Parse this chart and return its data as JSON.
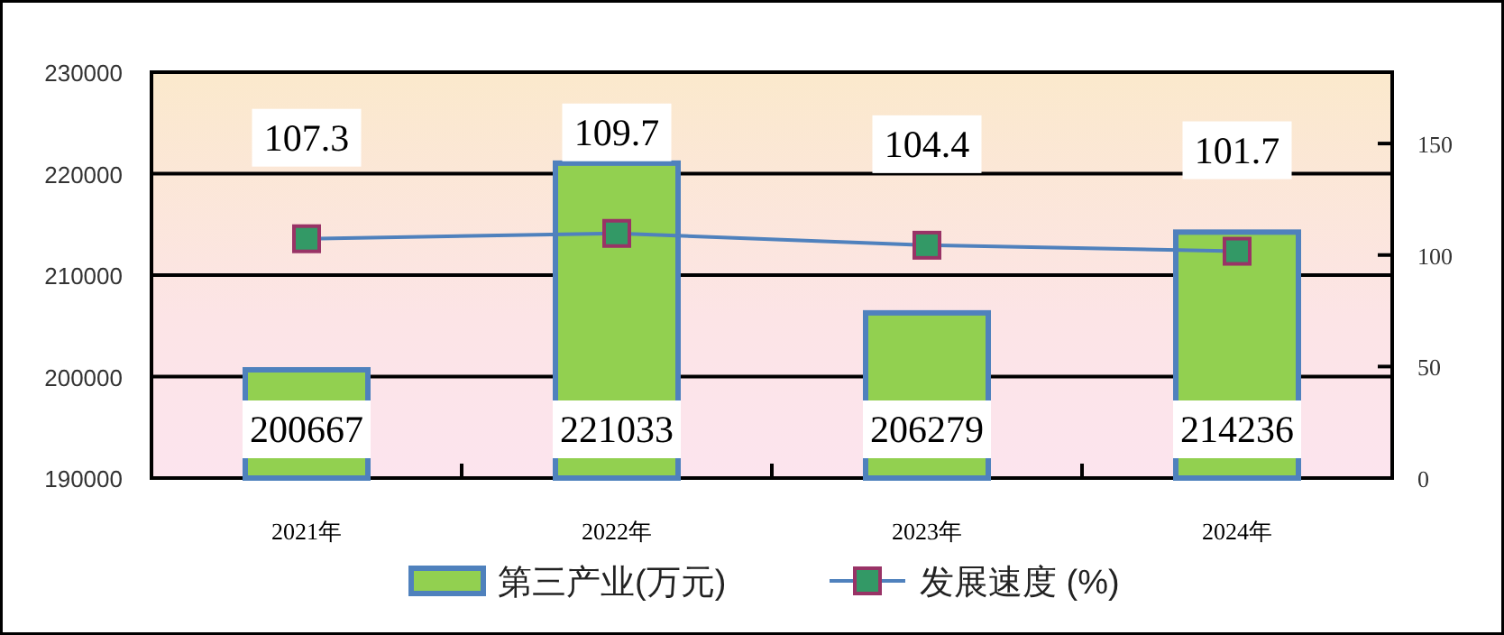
{
  "chart_data": {
    "type": "bar",
    "categories": [
      "2021年",
      "2022年",
      "2023年",
      "2024年"
    ],
    "series": [
      {
        "name": "第三产业(万元)",
        "color": "#92d050",
        "values": [
          200667,
          221033,
          206279,
          214236
        ]
      },
      {
        "name": "发展速度 (%)",
        "type": "line",
        "axis": "y2",
        "color": "#4f81bd",
        "marker": "square",
        "values": [
          107.3,
          109.7,
          104.4,
          101.7
        ]
      }
    ],
    "ylim": [
      190000,
      230000
    ],
    "yticks": [
      190000,
      200000,
      210000,
      220000,
      230000
    ],
    "y2lim": [
      0,
      182
    ],
    "y2ticks": [
      0,
      50,
      100,
      150
    ],
    "grid": "y",
    "legend": "bottom",
    "data_labels": true
  }
}
